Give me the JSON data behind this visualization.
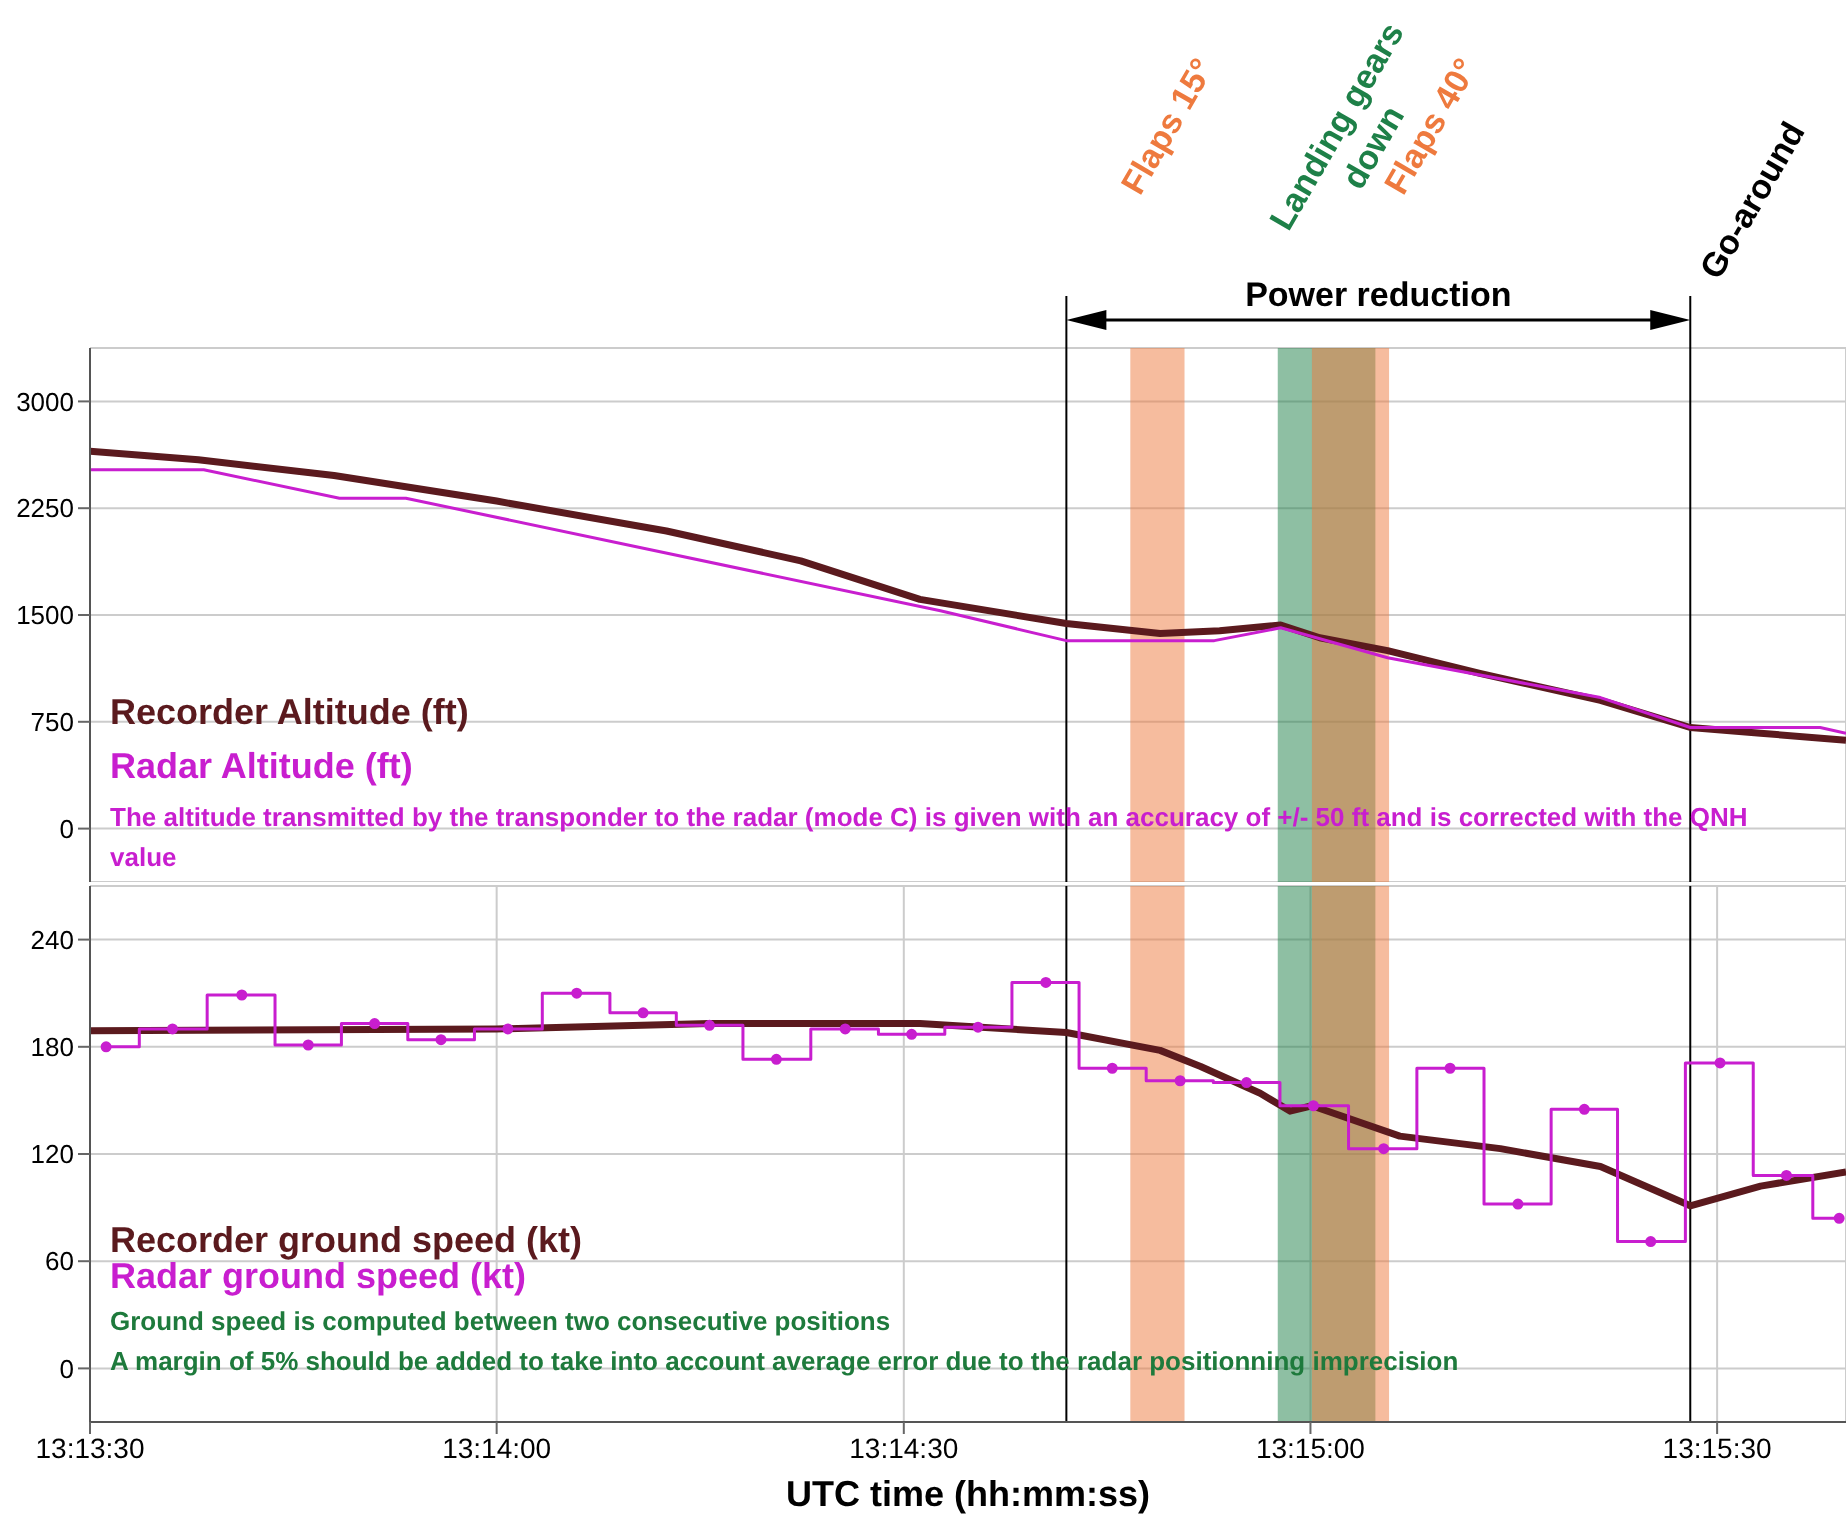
{
  "chart_data": [
    {
      "type": "line",
      "tick_labels": "y",
      "grid": true,
      "legend": "left",
      "xlim": [
        13.225,
        13.26097
      ],
      "ylim": [
        -375,
        3375
      ],
      "xticks": [
        {
          "value": 13.225,
          "label": null
        },
        {
          "value": 13.23333,
          "label": null
        },
        {
          "value": 13.24167,
          "label": null
        },
        {
          "value": 13.25,
          "label": null
        },
        {
          "value": 13.25833,
          "label": null
        }
      ],
      "yticks": [
        0,
        750,
        1500,
        2250,
        3000
      ],
      "series": [
        {
          "name": "Recorder Altitude (ft)",
          "color": "#5b1a1e",
          "x": [
            13.225,
            13.22722,
            13.23,
            13.23333,
            13.23681,
            13.23956,
            13.242,
            13.245,
            13.24692,
            13.24814,
            13.24939,
            13.25019,
            13.25158,
            13.25347,
            13.25594,
            13.25778,
            13.25922,
            13.26097
          ],
          "values": [
            2650,
            2590,
            2480,
            2300,
            2090,
            1880,
            1610,
            1440,
            1370,
            1390,
            1430,
            1340,
            1250,
            1090,
            900,
            710,
            670,
            620
          ]
        },
        {
          "name": "Radar Altitude (ft)",
          "color": "#c81ecf",
          "x": [
            13.225,
            13.22733,
            13.23011,
            13.23147,
            13.24242,
            13.245,
            13.24803,
            13.24939,
            13.25158,
            13.25594,
            13.25778,
            13.26044,
            13.26097
          ],
          "values": [
            2520,
            2520,
            2320,
            2320,
            1530,
            1320,
            1320,
            1410,
            1200,
            920,
            710,
            710,
            670
          ]
        }
      ],
      "bands": [
        {
          "axis": "x",
          "from": 13.24631,
          "to": 13.24742,
          "label": "Flaps 15°",
          "color": "#ee7a3e"
        },
        {
          "axis": "x",
          "from": 13.24933,
          "to": 13.25133,
          "label": "Landing gears down",
          "color": "#1e8048"
        },
        {
          "axis": "x",
          "from": 13.25003,
          "to": 13.25161,
          "label": "Flaps 40°",
          "color": "#ee7a3e"
        }
      ],
      "ref_lines": [
        {
          "axis": "x",
          "value": 13.245
        },
        {
          "axis": "x",
          "value": 13.25778,
          "label": "Go-around"
        }
      ],
      "annotations": [
        "Power reduction",
        "The altitude transmitted by the transponder to the radar (mode C) is given with an accuracy of +/- 50 ft and is corrected with the QNH value"
      ]
    },
    {
      "type": "line",
      "grid": true,
      "legend": "bottom left",
      "xlabel": "UTC time (hh:mm:ss)",
      "xlim": [
        13.225,
        13.26097
      ],
      "ylim": [
        -30,
        270
      ],
      "xticks": [
        {
          "value": 13.225,
          "label": "13:13:30"
        },
        {
          "value": 13.23333,
          "label": "13:14:00"
        },
        {
          "value": 13.24167,
          "label": "13:14:30"
        },
        {
          "value": 13.25,
          "label": "13:15:00"
        },
        {
          "value": 13.25833,
          "label": "13:15:30"
        }
      ],
      "yticks": [
        0,
        60,
        120,
        180,
        240
      ],
      "series": [
        {
          "name": "Recorder ground speed (kt)",
          "color": "#5b1a1e",
          "x": [
            13.225,
            13.23333,
            13.23769,
            13.242,
            13.245,
            13.24692,
            13.24775,
            13.24897,
            13.24958,
            13.25003,
            13.25183,
            13.25389,
            13.25594,
            13.25778,
            13.25922,
            13.26097
          ],
          "values": [
            189,
            190,
            193,
            193,
            188,
            178,
            169,
            154,
            144,
            147,
            130,
            123,
            113,
            91,
            102,
            110
          ]
        },
        {
          "name": "Radar ground speed (kt)",
          "color": "#c81ecf",
          "type": "step",
          "marker": "circle",
          "x": [
            13.22533,
            13.22669,
            13.22811,
            13.22947,
            13.23083,
            13.23219,
            13.23356,
            13.23497,
            13.23633,
            13.23769,
            13.23906,
            13.24047,
            13.24183,
            13.24319,
            13.24458,
            13.24594,
            13.24733,
            13.24869,
            13.25006,
            13.2515,
            13.25286,
            13.25425,
            13.25561,
            13.25697,
            13.25839,
            13.25975,
            13.26083
          ],
          "values": [
            180,
            190,
            209,
            181,
            193,
            184,
            190,
            210,
            199,
            192,
            173,
            190,
            187,
            191,
            216,
            168,
            161,
            160,
            147,
            123,
            168,
            92,
            145,
            71,
            171,
            108,
            84
          ]
        }
      ],
      "bands": [
        {
          "axis": "x",
          "from": 13.24631,
          "to": 13.24742,
          "color": "#ee7a3e"
        },
        {
          "axis": "x",
          "from": 13.24933,
          "to": 13.25133,
          "color": "#1e8048"
        },
        {
          "axis": "x",
          "from": 13.25003,
          "to": 13.25161,
          "color": "#ee7a3e"
        }
      ],
      "ref_lines": [
        {
          "axis": "x",
          "value": 13.245
        },
        {
          "axis": "x",
          "value": 13.25778
        }
      ],
      "annotations": [
        "Ground speed is computed between two consecutive positions",
        "A margin of 5% should be added to take into account average error due to the radar positionning imprecision"
      ]
    }
  ]
}
